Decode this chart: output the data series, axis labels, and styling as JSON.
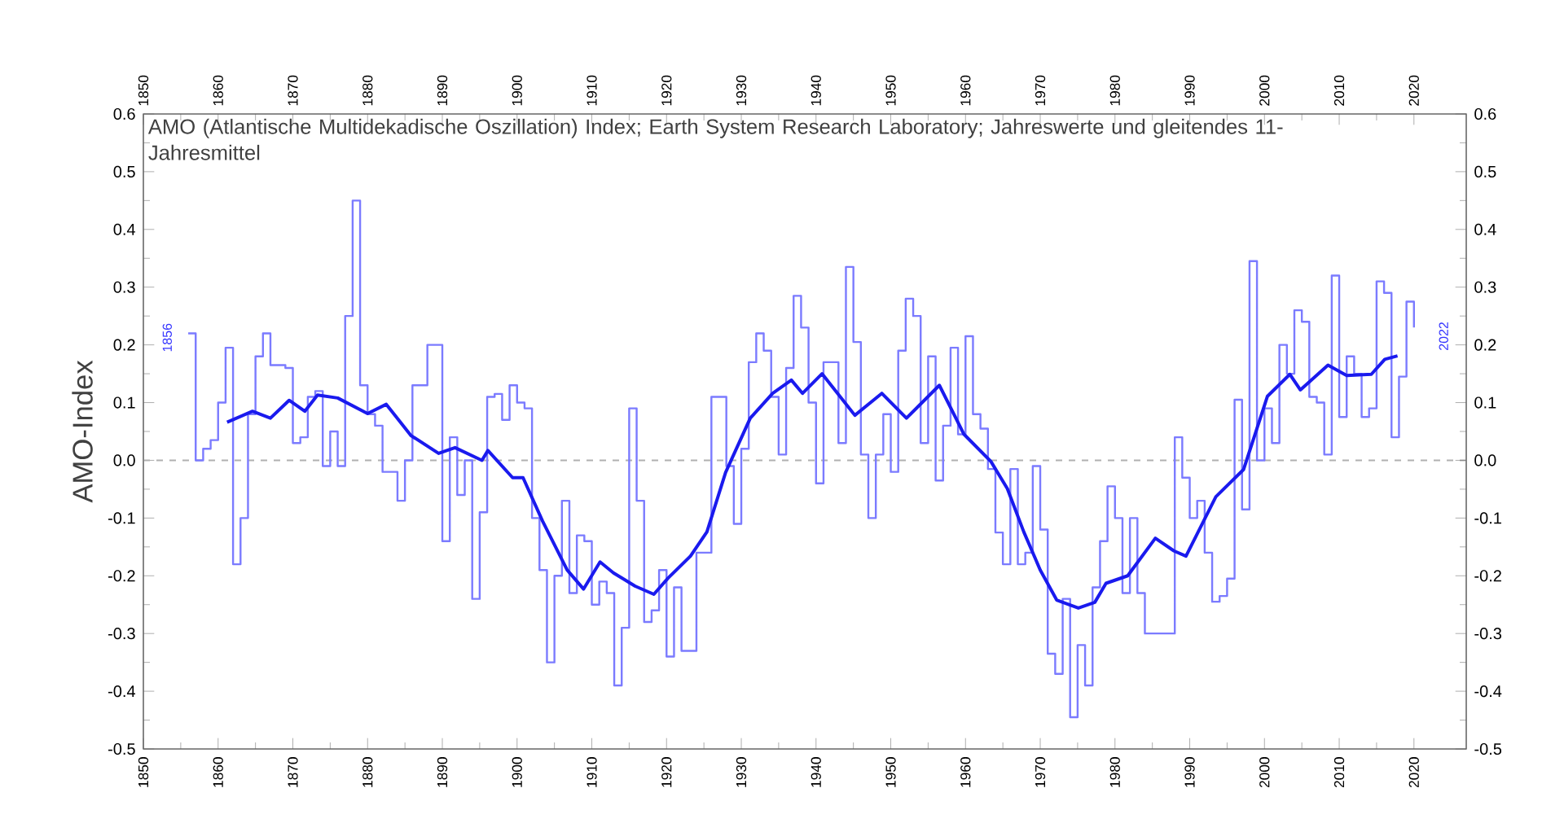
{
  "chart_data": {
    "type": "line",
    "title": "AMO (Atlantische Multidekadische Oszillation) Index; Earth System Research Laboratory; Jahreswerte und gleitendes 11-Jahresmittel",
    "ylabel": "AMO-Index",
    "xlim": [
      1850,
      2027
    ],
    "xticks": [
      1850,
      1860,
      1870,
      1880,
      1890,
      1900,
      1910,
      1920,
      1930,
      1940,
      1950,
      1960,
      1970,
      1980,
      1990,
      2000,
      2010,
      2020
    ],
    "x2lim": [
      1850,
      2027
    ],
    "x2ticks": [
      1850,
      1860,
      1870,
      1880,
      1890,
      1900,
      1910,
      1920,
      1930,
      1940,
      1950,
      1960,
      1970,
      1980,
      1990,
      2000,
      2010,
      2020
    ],
    "ylim": [
      -0.5,
      0.6
    ],
    "yticks": [
      -0.5,
      -0.4,
      -0.3,
      -0.2,
      -0.1,
      {
        "value": 0,
        "label": "0.0"
      },
      0.1,
      0.2,
      0.3,
      0.4,
      0.5,
      0.6
    ],
    "y2lim": [
      -0.5,
      0.6
    ],
    "y2ticks": [
      -0.5,
      -0.4,
      -0.3,
      -0.2,
      -0.1,
      {
        "value": 0,
        "label": "0.0"
      },
      0.1,
      0.2,
      0.3,
      0.4,
      0.5,
      0.6
    ],
    "grid": false,
    "ref_lines": [
      {
        "axis": "y",
        "value": 0,
        "color": "#b0b0b0",
        "line_style": "dashed"
      }
    ],
    "annotations": [
      "1856",
      "2022"
    ],
    "series": [
      {
        "type": "step",
        "color": "#7b7bff",
        "x": [
          1856,
          1857,
          1858,
          1859,
          1860,
          1861,
          1862,
          1863,
          1864,
          1865,
          1866,
          1867,
          1868,
          1869,
          1870,
          1871,
          1872,
          1873,
          1874,
          1875,
          1876,
          1877,
          1878,
          1879,
          1880,
          1881,
          1882,
          1883,
          1884,
          1885,
          1886,
          1887,
          1888,
          1889,
          1890,
          1891,
          1892,
          1893,
          1894,
          1895,
          1896,
          1897,
          1898,
          1899,
          1900,
          1901,
          1902,
          1903,
          1904,
          1905,
          1906,
          1907,
          1908,
          1909,
          1910,
          1911,
          1912,
          1913,
          1914,
          1915,
          1916,
          1917,
          1918,
          1919,
          1920,
          1921,
          1922,
          1923,
          1924,
          1925,
          1926,
          1927,
          1928,
          1929,
          1930,
          1931,
          1932,
          1933,
          1934,
          1935,
          1936,
          1937,
          1938,
          1939,
          1940,
          1941,
          1942,
          1943,
          1944,
          1945,
          1946,
          1947,
          1948,
          1949,
          1950,
          1951,
          1952,
          1953,
          1954,
          1955,
          1956,
          1957,
          1958,
          1959,
          1960,
          1961,
          1962,
          1963,
          1964,
          1965,
          1966,
          1967,
          1968,
          1969,
          1970,
          1971,
          1972,
          1973,
          1974,
          1975,
          1976,
          1977,
          1978,
          1979,
          1980,
          1981,
          1982,
          1983,
          1984,
          1985,
          1986,
          1987,
          1988,
          1989,
          1990,
          1991,
          1992,
          1993,
          1994,
          1995,
          1996,
          1997,
          1998,
          1999,
          2000,
          2001,
          2002,
          2003,
          2004,
          2005,
          2006,
          2007,
          2008,
          2009,
          2010,
          2011,
          2012,
          2013,
          2014,
          2015,
          2016,
          2017,
          2018,
          2019,
          2020
        ],
        "values": [
          0.22,
          0.0,
          0.02,
          0.035,
          0.1,
          0.195,
          -0.18,
          -0.1,
          0.08,
          0.18,
          0.22,
          0.165,
          0.165,
          0.16,
          0.03,
          0.04,
          0.11,
          0.12,
          -0.01,
          0.05,
          -0.01,
          0.25,
          0.45,
          0.13,
          0.08,
          0.06,
          -0.02,
          -0.02,
          -0.07,
          0.0,
          0.13,
          0.13,
          0.2,
          0.2,
          -0.14,
          0.04,
          -0.06,
          0.0,
          -0.24,
          -0.09,
          0.11,
          0.115,
          0.07,
          0.13,
          0.1,
          0.09,
          -0.1,
          -0.19,
          -0.35,
          -0.2,
          -0.07,
          -0.23,
          -0.13,
          -0.14,
          -0.25,
          -0.21,
          -0.23,
          -0.39,
          -0.29,
          0.09,
          -0.07,
          -0.28,
          -0.26,
          -0.19,
          -0.34,
          -0.22,
          -0.33,
          -0.33,
          -0.16,
          -0.16,
          0.11,
          0.11,
          -0.01,
          -0.11,
          0.02,
          0.17,
          0.22,
          0.19,
          0.11,
          0.01,
          0.16,
          0.285,
          0.23,
          0.1,
          -0.04,
          0.17,
          0.17,
          0.03,
          0.335,
          0.205,
          0.01,
          -0.1,
          0.01,
          0.08,
          -0.02,
          0.19,
          0.28,
          0.25,
          0.03,
          0.18,
          -0.035,
          0.06,
          0.195,
          0.045,
          0.215,
          0.08,
          0.055,
          -0.015,
          -0.125,
          -0.18,
          -0.015,
          -0.18,
          -0.16,
          -0.01,
          -0.12,
          -0.335,
          -0.37,
          -0.24,
          -0.445,
          -0.32,
          -0.39,
          -0.22,
          -0.14,
          -0.045,
          -0.1,
          -0.23,
          -0.1,
          -0.23,
          -0.3,
          -0.3,
          -0.3,
          -0.3,
          0.04,
          -0.03,
          -0.1,
          -0.07,
          -0.16,
          -0.245,
          -0.235,
          -0.205,
          0.105,
          -0.085,
          0.345,
          0.0,
          0.09,
          0.03,
          0.2,
          0.15,
          0.26,
          0.24,
          0.11,
          0.1,
          0.01,
          0.32,
          0.075,
          0.18,
          0.15,
          0.075,
          0.09,
          0.31,
          0.29,
          0.04,
          0.145,
          0.275,
          0.23
        ]
      },
      {
        "color": "#1a1aee",
        "x": [
          1861.2,
          1864.6,
          1867,
          1869.5,
          1871.6,
          1873.3,
          1876,
          1880,
          1882.5,
          1885.8,
          1889.5,
          1891.7,
          1895.3,
          1896.1,
          1899.4,
          1900.8,
          1903.4,
          1906.7,
          1908.9,
          1911.1,
          1912.9,
          1915.8,
          1918.3,
          1920.2,
          1923.2,
          1925.4,
          1927.9,
          1931.2,
          1934.2,
          1936.7,
          1938.2,
          1940.8,
          1945.2,
          1948.8,
          1952.1,
          1956.5,
          1959.8,
          1963.4,
          1965.6,
          1967.8,
          1970,
          1972.2,
          1975.1,
          1977.3,
          1978.8,
          1981.7,
          1985.4,
          1987.9,
          1989.5,
          1993.5,
          1997.2,
          2000.4,
          2003.4,
          2004.8,
          2008.5,
          2011,
          2014.3,
          2016.1,
          2017.8
        ],
        "values": [
          0.066,
          0.085,
          0.073,
          0.104,
          0.085,
          0.113,
          0.108,
          0.081,
          0.097,
          0.043,
          0.012,
          0.022,
          0.0,
          0.017,
          -0.03,
          -0.03,
          -0.105,
          -0.19,
          -0.223,
          -0.176,
          -0.195,
          -0.218,
          -0.232,
          -0.204,
          -0.166,
          -0.124,
          -0.021,
          0.073,
          0.116,
          0.139,
          0.116,
          0.15,
          0.078,
          0.116,
          0.073,
          0.13,
          0.045,
          -0.002,
          -0.049,
          -0.124,
          -0.19,
          -0.242,
          -0.256,
          -0.246,
          -0.213,
          -0.2,
          -0.135,
          -0.157,
          -0.166,
          -0.063,
          -0.016,
          0.111,
          0.149,
          0.122,
          0.165,
          0.147,
          0.149,
          0.175,
          0.181
        ]
      }
    ]
  }
}
